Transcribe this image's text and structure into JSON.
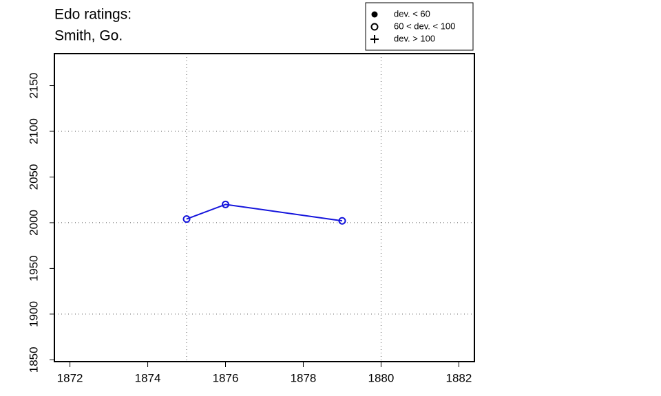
{
  "chart_data": {
    "type": "line",
    "title": "Edo ratings:",
    "subtitle": "Smith, Go.",
    "x": [
      1875,
      1876,
      1879
    ],
    "series": [
      {
        "color": "#1414dc",
        "marker": "open-circle",
        "values": [
          2004,
          2020,
          2002
        ]
      }
    ],
    "xlim": [
      1871.6,
      1882.4
    ],
    "xticks": [
      1872,
      1874,
      1876,
      1878,
      1880,
      1882
    ],
    "ylim": [
      1848,
      2185
    ],
    "yticks": [
      1850,
      1900,
      1950,
      2000,
      2050,
      2100,
      2150
    ],
    "xgrid": [
      1875,
      1880
    ],
    "ygrid": [
      1900,
      2000,
      2100
    ],
    "legend_position": "top-right",
    "legend": [
      {
        "label": "dev. < 60",
        "marker": "filled-circle"
      },
      {
        "label": "60 < dev. < 100",
        "marker": "open-circle"
      },
      {
        "label": "dev. > 100",
        "marker": "plus"
      }
    ]
  }
}
